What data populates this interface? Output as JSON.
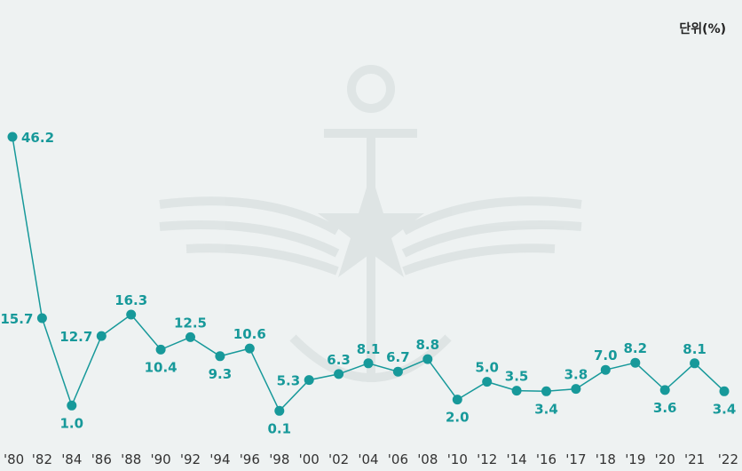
{
  "unit_label": "단위(%)",
  "colors": {
    "series": "#17999a",
    "background": "#eef2f2",
    "watermark": "#dde3e3"
  },
  "chart_data": {
    "type": "line",
    "title": "",
    "xlabel": "",
    "ylabel": "",
    "ylim": [
      0,
      47
    ],
    "grid": false,
    "legend": "none",
    "categories": [
      "'80",
      "'82",
      "'84",
      "'86",
      "'88",
      "'90",
      "'92",
      "'94",
      "'96",
      "'98",
      "'00",
      "'02",
      "'04",
      "'06",
      "'08",
      "'10",
      "'12",
      "'14",
      "'16",
      "'17",
      "'18",
      "'19",
      "'20",
      "'21",
      "'22"
    ],
    "values": [
      46.2,
      15.7,
      1.0,
      12.7,
      16.3,
      10.4,
      12.5,
      9.3,
      10.6,
      0.1,
      5.3,
      6.3,
      8.1,
      6.7,
      8.8,
      2.0,
      5.0,
      3.5,
      3.4,
      3.8,
      7.0,
      8.2,
      3.6,
      8.1,
      3.4
    ],
    "value_labels": [
      "46.2",
      "15.7",
      "1.0",
      "12.7",
      "16.3",
      "10.4",
      "12.5",
      "9.3",
      "10.6",
      "0.1",
      "5.3",
      "6.3",
      "8.1",
      "6.7",
      "8.8",
      "2.0",
      "5.0",
      "3.5",
      "3.4",
      "3.8",
      "7.0",
      "8.2",
      "3.6",
      "8.1",
      "3.4"
    ]
  }
}
